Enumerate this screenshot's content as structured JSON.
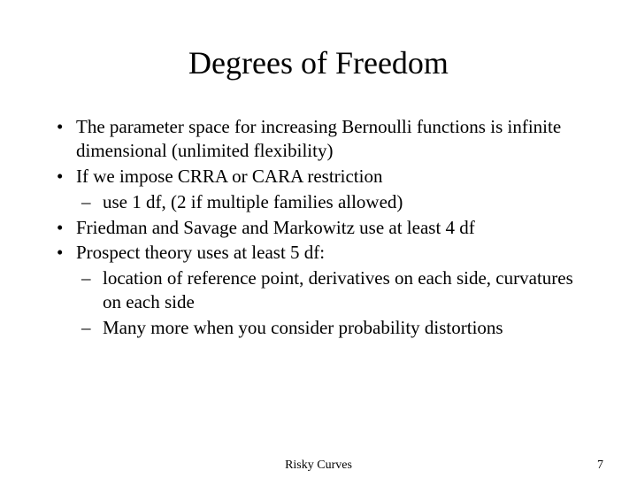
{
  "title": "Degrees of Freedom",
  "bullets": [
    {
      "text": "The parameter space for increasing Bernoulli functions is infinite dimensional (unlimited flexibility)",
      "sub": []
    },
    {
      "text": "If we impose CRRA or CARA restriction",
      "sub": [
        " use 1 df, (2 if multiple families allowed)"
      ]
    },
    {
      "text": "Friedman and Savage and Markowitz use at least 4 df",
      "sub": []
    },
    {
      "text": "Prospect theory uses at least 5 df:",
      "sub": [
        " location of reference point, derivatives on each side, curvatures on each side",
        "Many more when you consider probability distortions"
      ]
    }
  ],
  "footer": {
    "center": "Risky Curves",
    "page": "7"
  },
  "style": {
    "background_color": "#ffffff",
    "text_color": "#000000",
    "title_fontsize": 36,
    "body_fontsize": 21,
    "footer_fontsize": 14,
    "font_family": "Times New Roman"
  }
}
